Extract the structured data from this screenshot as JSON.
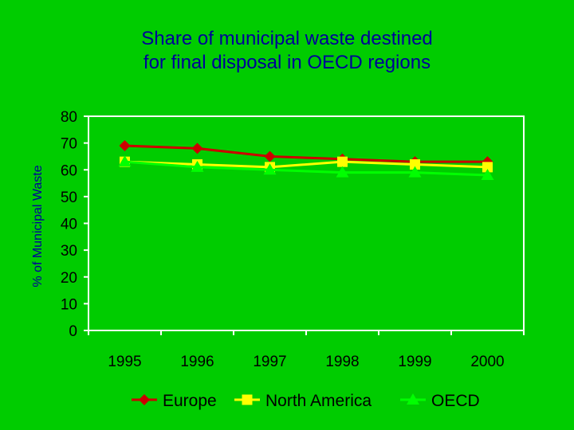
{
  "chart_data": {
    "type": "line",
    "title_lines": [
      "Share of municipal waste destined",
      "for final disposal in OECD regions"
    ],
    "xlabel": "",
    "ylabel": "% of Municipal Waste",
    "categories": [
      "1995",
      "1996",
      "1997",
      "1998",
      "1999",
      "2000"
    ],
    "ylim": [
      0,
      80
    ],
    "yticks": [
      "0",
      "10",
      "20",
      "30",
      "40",
      "50",
      "60",
      "70",
      "80"
    ],
    "grid": false,
    "legend_position": "bottom",
    "series": [
      {
        "name": "Europe",
        "values": [
          69,
          68,
          65,
          64,
          63,
          63
        ],
        "color": "#CC0000",
        "marker": "diamond"
      },
      {
        "name": "North America",
        "values": [
          63,
          62,
          61,
          63,
          62,
          61
        ],
        "color": "#FFFF00",
        "marker": "square"
      },
      {
        "name": "OECD",
        "values": [
          63,
          61,
          60,
          59,
          59,
          58
        ],
        "color": "#00FF00",
        "marker": "triangle"
      }
    ],
    "colors": {
      "background": "#00CC00",
      "title": "#000099",
      "axis_label": "#000099",
      "plot_background": "#00CC00",
      "axis": "#FFFFFF"
    }
  }
}
